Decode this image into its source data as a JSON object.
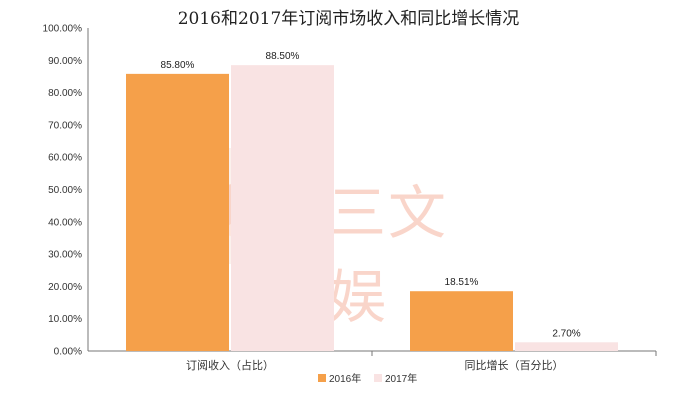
{
  "chart_data": {
    "type": "bar",
    "title": "2016和2017年订阅市场收入和同比增长情况",
    "categories": [
      "订阅收入（占比）",
      "同比增长（百分比）"
    ],
    "series": [
      {
        "name": "2016年",
        "values": [
          85.8,
          18.51
        ],
        "labels": [
          "85.80%",
          "18.51%"
        ],
        "color": "#f5a04a"
      },
      {
        "name": "2017年",
        "values": [
          88.5,
          2.7
        ],
        "labels": [
          "88.50%",
          "2.70%"
        ],
        "color": "#f9e3e3"
      }
    ],
    "ylim": [
      0,
      100
    ],
    "yticks": [
      "0.00%",
      "10.00%",
      "20.00%",
      "30.00%",
      "40.00%",
      "50.00%",
      "60.00%",
      "70.00%",
      "80.00%",
      "90.00%",
      "100.00%"
    ],
    "grid": false,
    "legend_position": "bottom"
  },
  "watermark": {
    "text": "三文娱"
  }
}
